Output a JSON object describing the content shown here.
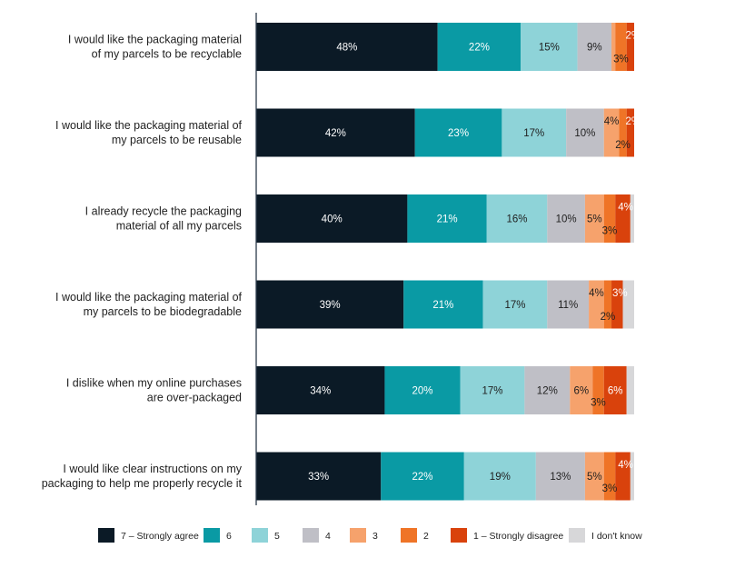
{
  "chart_data": {
    "type": "bar",
    "stacked": true,
    "orientation": "horizontal",
    "value_unit": "%",
    "xlim": [
      0,
      100
    ],
    "legend_position": "bottom",
    "categories": [
      [
        "I would like the packaging material",
        "of my parcels to be recyclable"
      ],
      [
        "I would like the packaging material of",
        "my parcels to be reusable"
      ],
      [
        "I already recycle the packaging",
        "material of all my parcels"
      ],
      [
        "I would like the packaging material of",
        "my parcels to be biodegradable"
      ],
      [
        "I dislike when my online purchases",
        "are over-packaged"
      ],
      [
        "I would like clear instructions on my",
        "packaging to help me properly recycle it"
      ]
    ],
    "series": [
      {
        "name": "7 – Strongly agree",
        "color": "#0b1a26",
        "label_color": "#ffffff",
        "values": [
          48,
          42,
          40,
          39,
          34,
          33
        ]
      },
      {
        "name": "6",
        "color": "#0a9aa4",
        "label_color": "#ffffff",
        "values": [
          22,
          23,
          21,
          21,
          20,
          22
        ]
      },
      {
        "name": "5",
        "color": "#8ed3d8",
        "label_color": "#1f1f1f",
        "values": [
          15,
          17,
          16,
          17,
          17,
          19
        ]
      },
      {
        "name": "4",
        "color": "#bfbfc6",
        "label_color": "#1f1f1f",
        "values": [
          9,
          10,
          10,
          11,
          12,
          13
        ]
      },
      {
        "name": "3",
        "color": "#f6a26c",
        "label_color": "#1f1f1f",
        "values": [
          1,
          4,
          5,
          4,
          6,
          5
        ]
      },
      {
        "name": "2",
        "color": "#ef7427",
        "label_color": "#1f1f1f",
        "values": [
          3,
          2,
          3,
          2,
          3,
          3
        ]
      },
      {
        "name": "1 – Strongly disagree",
        "color": "#d9420c",
        "label_color": "#ffffff",
        "values": [
          2,
          2,
          4,
          3,
          6,
          4
        ]
      },
      {
        "name": "I don't know",
        "color": "#d7d7d9",
        "label_color": "#1f1f1f",
        "values": [
          0,
          0,
          1,
          3,
          2,
          1
        ]
      }
    ],
    "value_labels": [
      [
        "48%",
        "22%",
        "15%",
        "9%",
        "",
        "3%",
        "2%",
        ""
      ],
      [
        "42%",
        "23%",
        "17%",
        "10%",
        "4%",
        "2%",
        "2%",
        ""
      ],
      [
        "40%",
        "21%",
        "16%",
        "10%",
        "5%",
        "3%",
        "4%",
        ""
      ],
      [
        "39%",
        "21%",
        "17%",
        "11%",
        "4%",
        "2%",
        "3%",
        ""
      ],
      [
        "34%",
        "20%",
        "17%",
        "12%",
        "6%",
        "3%",
        "6%",
        ""
      ],
      [
        "33%",
        "22%",
        "19%",
        "13%",
        "5%",
        "3%",
        "4%",
        ""
      ]
    ]
  }
}
